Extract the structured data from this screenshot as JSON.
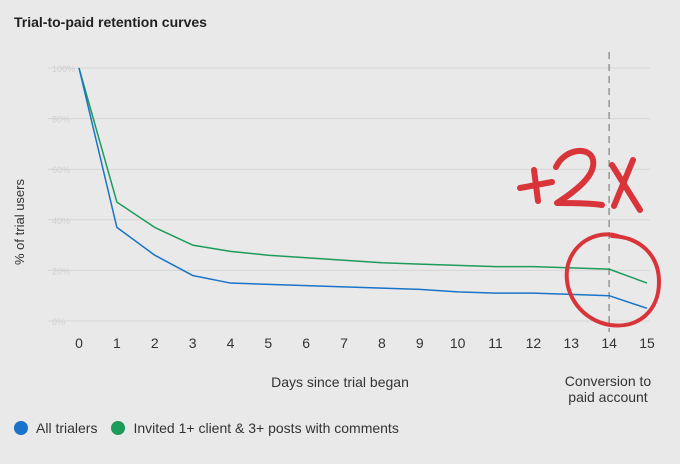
{
  "chart_data": {
    "type": "line",
    "title": "Trial-to-paid retention curves",
    "xlabel": "Days since trial began",
    "ylabel": "% of trial users",
    "x": [
      0,
      1,
      2,
      3,
      4,
      5,
      6,
      7,
      8,
      9,
      10,
      11,
      12,
      13,
      14,
      15
    ],
    "ylim": [
      0,
      100
    ],
    "yticks": [
      "100%",
      "80%",
      "60%",
      "40%",
      "20%",
      "0%"
    ],
    "grid": true,
    "legend_position": "bottom-left",
    "series": [
      {
        "name": "All trialers",
        "color": "#1a73c8",
        "values": [
          100,
          37,
          26,
          18,
          15,
          14.5,
          14,
          13.5,
          13,
          12.5,
          11.5,
          11,
          11,
          10.5,
          10,
          5
        ]
      },
      {
        "name": "Invited 1+ client & 3+ posts with comments",
        "color": "#1d9b5a",
        "values": [
          100,
          47,
          37,
          30,
          27.5,
          26,
          25,
          24,
          23,
          22.5,
          22,
          21.5,
          21.5,
          21,
          20.5,
          15
        ]
      }
    ],
    "annotations": {
      "conversion_day": 14,
      "conversion_label": [
        "Conversion to",
        "paid account"
      ],
      "handwritten_text": "+2x",
      "handwritten_color": "#d9343a"
    }
  }
}
